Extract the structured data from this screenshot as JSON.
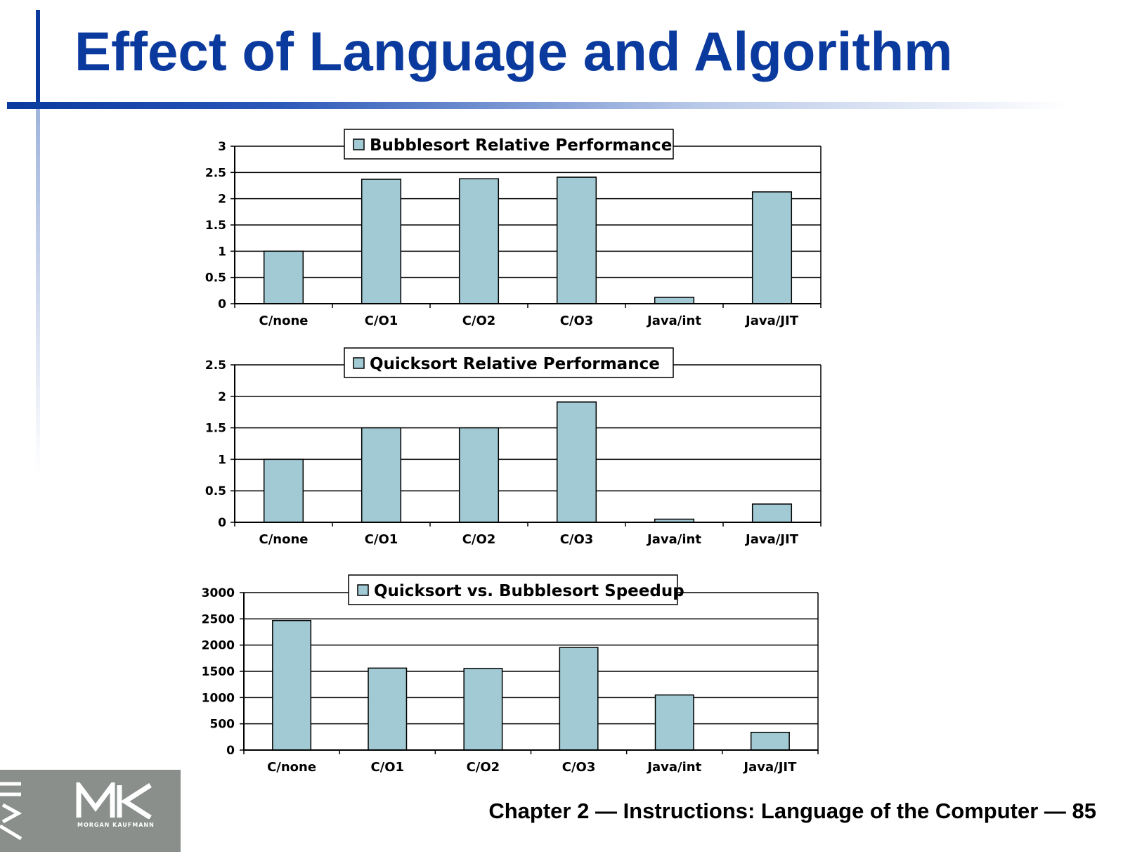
{
  "slide": {
    "title": "Effect of Language and Algorithm",
    "footer": "Chapter 2 — Instructions: Language of the Computer — 85",
    "logo_text": "MORGAN KAUFMANN"
  },
  "colors": {
    "title": "#0b3a9e",
    "bar_fill": "#a2cad4",
    "bar_stroke": "#000000"
  },
  "chart_data": [
    {
      "type": "bar",
      "legend": "Bubblesort Relative Performance",
      "categories": [
        "C/none",
        "C/O1",
        "C/O2",
        "C/O3",
        "Java/int",
        "Java/JIT"
      ],
      "values": [
        1,
        2.37,
        2.38,
        2.41,
        0.12,
        2.13
      ],
      "ylim": [
        0,
        3
      ],
      "yticks": [
        0,
        0.5,
        1,
        1.5,
        2,
        2.5,
        3
      ],
      "ytick_labels": [
        "0",
        "0.5",
        "1",
        "1.5",
        "2",
        "2.5",
        "3"
      ],
      "grid": true,
      "legend_position": "top-center"
    },
    {
      "type": "bar",
      "legend": "Quicksort Relative Performance",
      "categories": [
        "C/none",
        "C/O1",
        "C/O2",
        "C/O3",
        "Java/int",
        "Java/JIT"
      ],
      "values": [
        1,
        1.5,
        1.5,
        1.91,
        0.05,
        0.29
      ],
      "ylim": [
        0,
        2.5
      ],
      "yticks": [
        0,
        0.5,
        1,
        1.5,
        2,
        2.5
      ],
      "ytick_labels": [
        "0",
        "0.5",
        "1",
        "1.5",
        "2",
        "2.5"
      ],
      "grid": true,
      "legend_position": "top-center"
    },
    {
      "type": "bar",
      "legend": "Quicksort vs. Bubblesort Speedup",
      "categories": [
        "C/none",
        "C/O1",
        "C/O2",
        "C/O3",
        "Java/int",
        "Java/JIT"
      ],
      "values": [
        2468,
        1562,
        1555,
        1955,
        1050,
        338
      ],
      "ylim": [
        0,
        3000
      ],
      "yticks": [
        0,
        500,
        1000,
        1500,
        2000,
        2500,
        3000
      ],
      "ytick_labels": [
        "0",
        "500",
        "1000",
        "1500",
        "2000",
        "2500",
        "3000"
      ],
      "grid": true,
      "legend_position": "top-center"
    }
  ]
}
